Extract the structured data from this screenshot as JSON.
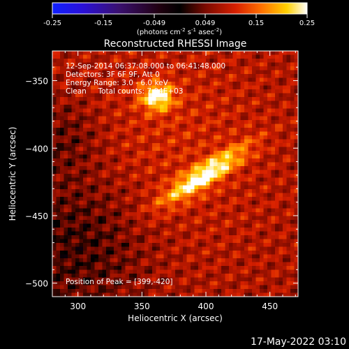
{
  "colorbar": {
    "ticks": [
      "-0.25",
      "-0.15",
      "-0.049",
      "0.049",
      "0.15",
      "0.25"
    ],
    "units_pre": "(photons cm",
    "units_e1": "-2",
    "units_mid1": " s",
    "units_e2": "-1",
    "units_mid2": " asec",
    "units_e3": "-2",
    "units_post": ")"
  },
  "title": "Reconstructed RHESSI Image",
  "info": {
    "line1": "12-Sep-2014 06:37:08.000 to 06:41:48.000",
    "line2": "Detectors: 3F 6F 9F, Att 0",
    "line3": "Energy Range: 3.0 - 6.0 keV",
    "line4": "Clean     Total counts: 7.04E+03"
  },
  "peak_text": "Position of Peak = [399,-420]",
  "xaxis": {
    "label": "Heliocentric X (arcsec)",
    "ticks": [
      "300",
      "350",
      "400",
      "450"
    ],
    "tick_values": [
      300,
      350,
      400,
      450
    ],
    "range": [
      280,
      472
    ]
  },
  "yaxis": {
    "label": "Heliocentric Y (arcsec)",
    "ticks": [
      "−350",
      "−400",
      "−450",
      "−500"
    ],
    "tick_values": [
      -350,
      -400,
      -450,
      -500
    ],
    "range": [
      -328,
      -510
    ]
  },
  "timestamp": "17-May-2022 03:10",
  "sources": [
    {
      "x": 362,
      "y": -362,
      "peak": 1.0
    },
    {
      "x": 399,
      "y": -420,
      "peak": 1.0
    }
  ]
}
